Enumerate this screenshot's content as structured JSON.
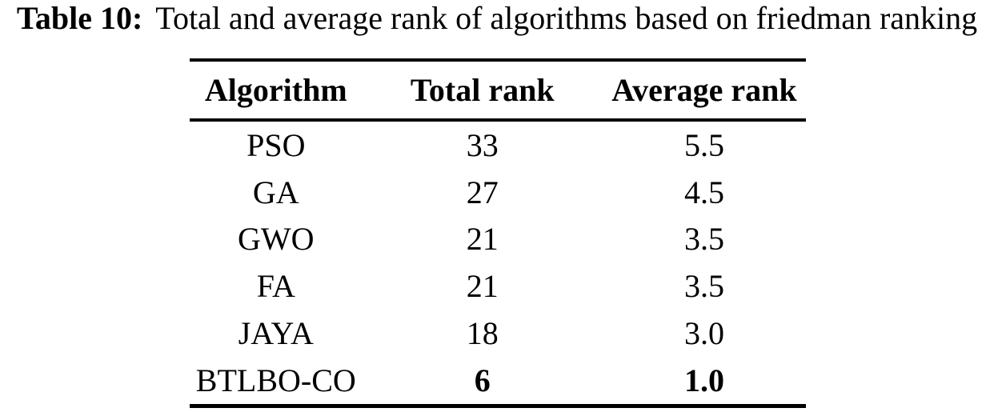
{
  "caption": {
    "label": "Table 10:",
    "text": "Total and average rank of algorithms based on friedman ranking"
  },
  "table": {
    "columns": {
      "algorithm": "Algorithm",
      "total_rank": "Total rank",
      "average_rank": "Average rank"
    },
    "rows": [
      {
        "algorithm": "PSO",
        "total_rank": "33",
        "average_rank": "5.5"
      },
      {
        "algorithm": "GA",
        "total_rank": "27",
        "average_rank": "4.5"
      },
      {
        "algorithm": "GWO",
        "total_rank": "21",
        "average_rank": "3.5"
      },
      {
        "algorithm": "FA",
        "total_rank": "21",
        "average_rank": "3.5"
      },
      {
        "algorithm": "JAYA",
        "total_rank": "18",
        "average_rank": "3.0"
      },
      {
        "algorithm": "BTLBO-CO",
        "total_rank": "6",
        "average_rank": "1.0"
      }
    ],
    "bold_row_index": 5
  },
  "colors": {
    "text": "#000000",
    "background": "#ffffff",
    "rule": "#000000"
  }
}
